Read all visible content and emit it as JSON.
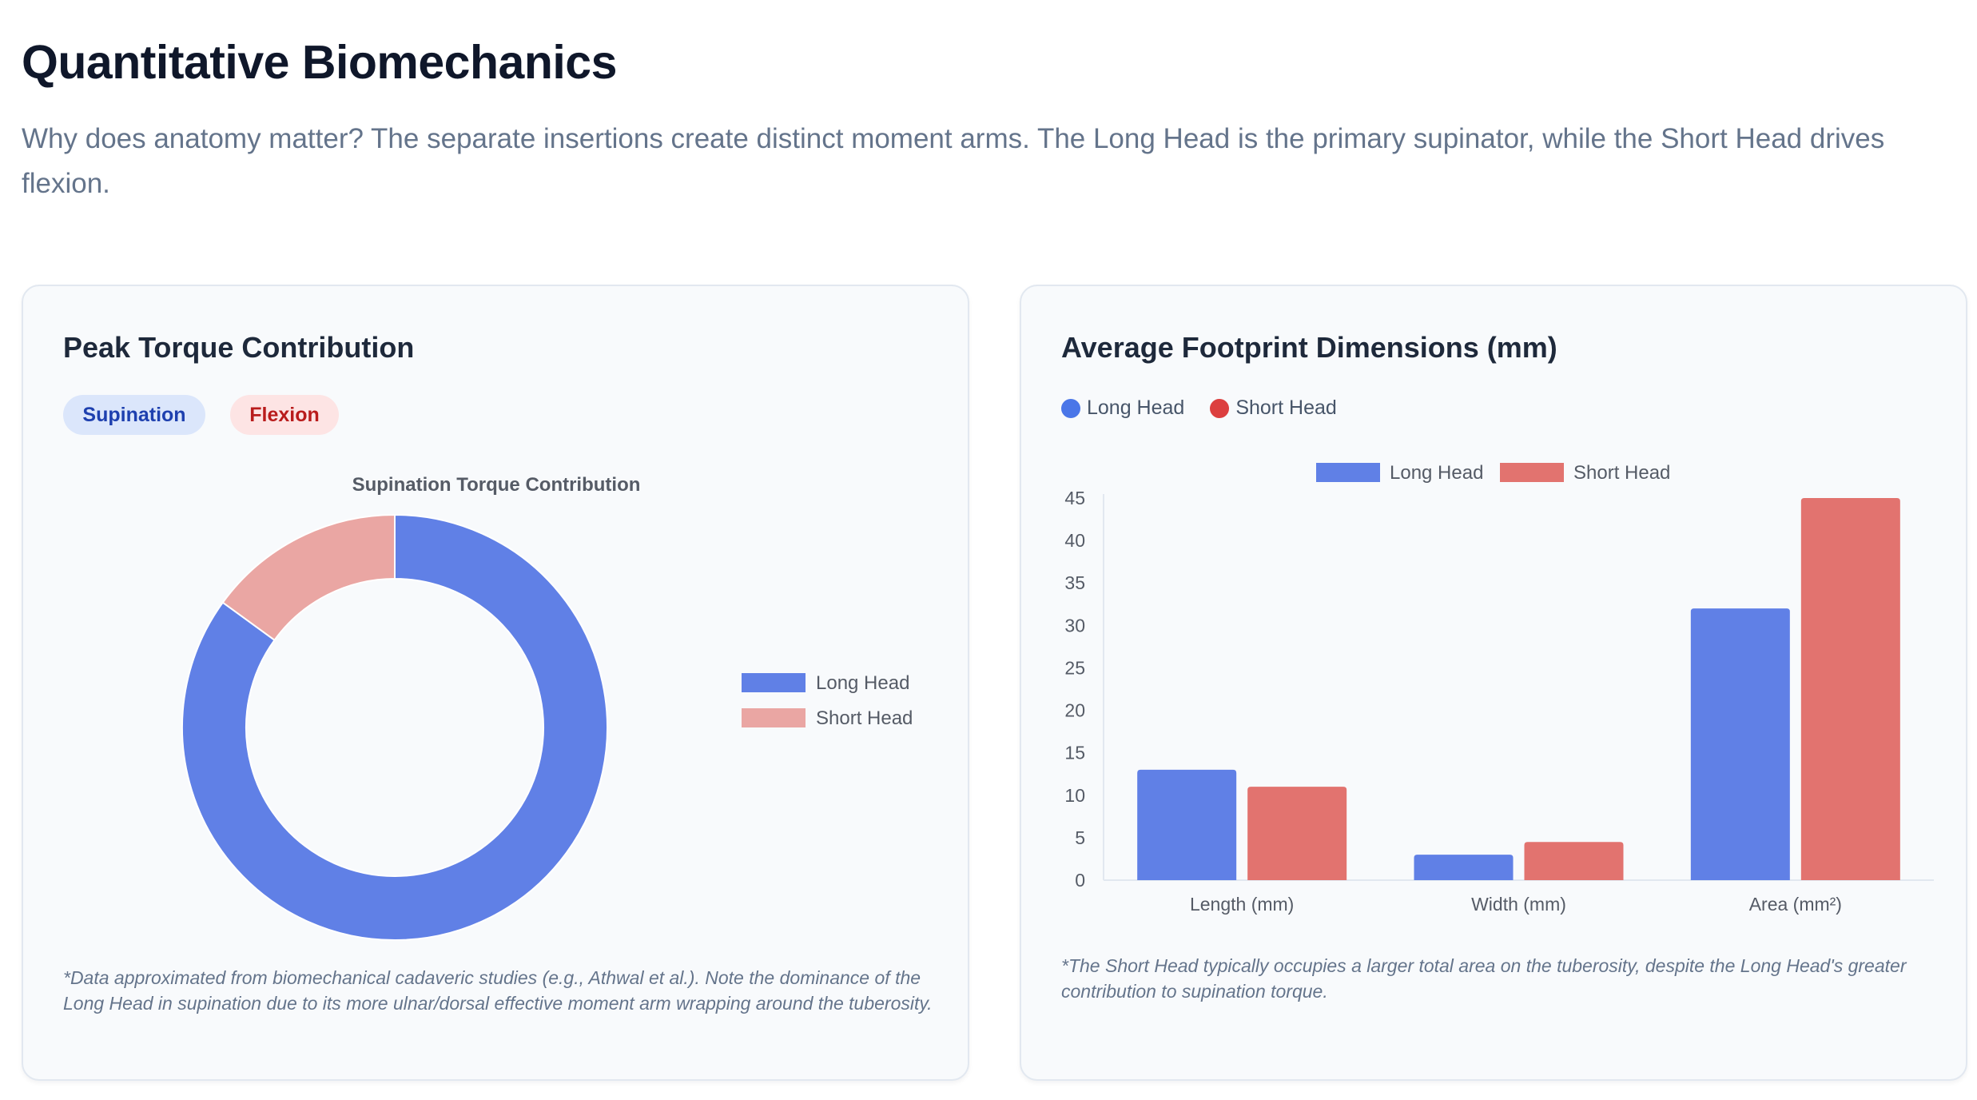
{
  "page": {
    "title": "Quantitative Biomechanics",
    "intro": "Why does anatomy matter? The separate insertions create distinct moment arms. The Long Head is the primary supinator, while the Short Head drives flexion."
  },
  "left_card": {
    "title": "Peak Torque Contribution",
    "tabs": {
      "supination": "Supination",
      "flexion": "Flexion"
    },
    "active_tab": "Supination",
    "footnote": "*Data approximated from biomechanical cadaveric studies (e.g., Athwal et al.). Note the dominance of the Long Head in supination due to its more ulnar/dorsal effective moment arm wrapping around the tuberosity."
  },
  "right_card": {
    "title": "Average Footprint Dimensions (mm)",
    "legend": {
      "long": "Long Head",
      "short": "Short Head"
    },
    "footnote": "*The Short Head typically occupies a larger total area on the tuberosity, despite the Long Head's greater contribution to supination torque."
  },
  "colors": {
    "long_head": "#6080e6",
    "short_head": "#e2736f",
    "long_head_dot": "#4a76e8",
    "short_head_dot": "#dc3f3f",
    "short_head_light": "#eaa6a3"
  },
  "chart_data": [
    {
      "type": "pie",
      "donut": true,
      "title": "Supination Torque Contribution",
      "labels": [
        "Long Head",
        "Short Head"
      ],
      "values": [
        85,
        15
      ],
      "colors": [
        "#6080e6",
        "#eaa6a3"
      ],
      "legend_position": "right"
    },
    {
      "type": "bar",
      "categories": [
        "Length (mm)",
        "Width (mm)",
        "Area (mm²)"
      ],
      "series": [
        {
          "name": "Long Head",
          "values": [
            13,
            3,
            32
          ],
          "color": "#6080e6"
        },
        {
          "name": "Short Head",
          "values": [
            11,
            4.5,
            45
          ],
          "color": "#e2736f"
        }
      ],
      "ylim": [
        0,
        45
      ],
      "yticks": [
        "0",
        "5",
        "10",
        "15",
        "20",
        "25",
        "30",
        "35",
        "40",
        "45"
      ],
      "grid": false,
      "legend_position": "top"
    }
  ]
}
